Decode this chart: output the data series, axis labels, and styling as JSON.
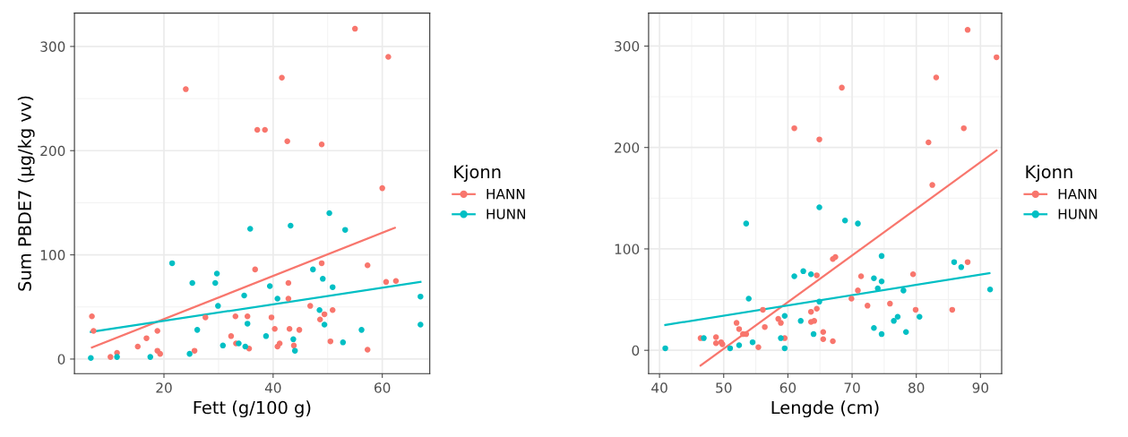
{
  "chart_data": [
    {
      "type": "scatter",
      "xlabel": "Fett (g/100 g)",
      "ylabel": "Sum PBDE7 (µg/kg vv)",
      "legend_title": "Kjonn",
      "legend": "right",
      "grid": true,
      "xlim": [
        3.6,
        68.7
      ],
      "ylim": [
        -14,
        332
      ],
      "xticks": [
        20,
        40,
        60
      ],
      "yticks": [
        0,
        100,
        200,
        300
      ],
      "series": [
        {
          "name": "HANN",
          "marker": "circle",
          "color": "#f8766d",
          "x": [
            6.8,
            7.1,
            10.2,
            11.4,
            15.2,
            16.8,
            18.8,
            18.8,
            19.3,
            24.0,
            25.6,
            27.6,
            32.3,
            33.1,
            33.2,
            35.3,
            35.6,
            36.7,
            37.1,
            38.5,
            39.7,
            40.3,
            40.8,
            41.2,
            41.6,
            42.6,
            42.8,
            42.8,
            43.0,
            43.8,
            44.8,
            46.8,
            48.9,
            48.9,
            48.6,
            49.4,
            50.9,
            50.5,
            55.0,
            57.3,
            57.3,
            60.0,
            60.7,
            61.1,
            62.5
          ],
          "values": [
            41,
            27,
            2,
            6,
            12,
            20,
            27,
            8,
            5,
            259,
            8,
            40,
            22,
            41,
            15,
            41,
            10,
            86,
            220,
            220,
            40,
            29,
            12,
            15,
            270,
            209,
            73,
            58,
            29,
            13,
            28,
            51,
            206,
            92,
            38,
            43,
            47,
            17,
            317,
            90,
            9,
            164,
            74,
            290,
            75
          ]
        },
        {
          "name": "HUNN",
          "marker": "circle",
          "color": "#00bfc4",
          "x": [
            6.6,
            11.4,
            17.5,
            21.5,
            24.7,
            25.2,
            26.1,
            29.4,
            29.7,
            29.9,
            30.8,
            33.7,
            34.7,
            34.9,
            35.3,
            35.8,
            38.7,
            39.4,
            40.8,
            43.2,
            43.7,
            44.0,
            47.3,
            48.5,
            49.1,
            49.4,
            50.3,
            50.9,
            52.8,
            53.2,
            56.2,
            67.0,
            67.0
          ],
          "values": [
            1,
            2,
            2,
            92,
            5,
            73,
            28,
            73,
            82,
            51,
            13,
            15,
            61,
            12,
            34,
            125,
            22,
            70,
            58,
            128,
            19,
            8,
            86,
            47,
            77,
            33,
            140,
            69,
            16,
            124,
            28,
            60,
            33
          ]
        },
        {
          "type": "line",
          "color": "#f8766d",
          "x": [
            6.8,
            62.3
          ],
          "values": [
            11,
            126
          ]
        },
        {
          "type": "line",
          "color": "#00bfc4",
          "x": [
            6.6,
            67.0
          ],
          "values": [
            26,
            74
          ]
        }
      ]
    },
    {
      "type": "scatter",
      "xlabel": "Lengde (cm)",
      "legend_title": "Kjonn",
      "legend": "right",
      "grid": true,
      "xlim": [
        38.3,
        93.3
      ],
      "ylim": [
        -23,
        332.5
      ],
      "xticks": [
        40,
        50,
        60,
        70,
        80,
        90
      ],
      "yticks": [
        0,
        100,
        200,
        300
      ],
      "series": [
        {
          "name": "HANN",
          "marker": "circle",
          "color": "#f8766d",
          "x": [
            46.4,
            48.8,
            48.8,
            49.6,
            49.8,
            52.0,
            52.4,
            53.0,
            53.5,
            55.4,
            56.1,
            56.4,
            58.5,
            58.9,
            59.5,
            61.0,
            63.6,
            63.6,
            64.1,
            64.5,
            64.5,
            64.9,
            65.5,
            65.5,
            67.0,
            67.4,
            67.0,
            68.4,
            69.9,
            70.9,
            71.4,
            72.4,
            75.9,
            79.5,
            79.9,
            81.9,
            82.5,
            83.1,
            85.6,
            87.4,
            88.0,
            88.0,
            92.5
          ],
          "values": [
            12,
            13,
            7,
            8,
            6,
            27,
            21,
            16,
            16,
            3,
            40,
            23,
            31,
            27,
            12,
            219,
            38,
            28,
            29,
            41,
            74,
            208,
            18,
            11,
            90,
            92,
            9,
            259,
            51,
            59,
            73,
            44,
            46,
            75,
            40,
            205,
            163,
            269,
            40,
            219,
            316,
            87,
            289
          ]
        },
        {
          "name": "HUNN",
          "marker": "circle",
          "color": "#00bfc4",
          "x": [
            40.9,
            46.9,
            51.0,
            52.4,
            53.5,
            53.9,
            54.5,
            58.9,
            59.5,
            59.5,
            61.0,
            62.0,
            62.4,
            63.6,
            64.0,
            64.9,
            64.9,
            68.9,
            70.9,
            73.4,
            73.4,
            74.0,
            74.6,
            74.6,
            74.6,
            76.5,
            77.1,
            78.0,
            78.4,
            80.5,
            85.9,
            87.0,
            91.5
          ],
          "values": [
            2,
            12,
            2,
            5,
            125,
            51,
            8,
            12,
            34,
            2,
            73,
            29,
            78,
            75,
            16,
            141,
            48,
            128,
            125,
            71,
            22,
            61,
            93,
            68,
            16,
            29,
            33,
            59,
            18,
            33,
            87,
            82,
            60
          ]
        },
        {
          "type": "line",
          "color": "#f8766d",
          "x": [
            46.4,
            92.5
          ],
          "values": [
            -15,
            197
          ]
        },
        {
          "type": "line",
          "color": "#00bfc4",
          "x": [
            40.9,
            91.4
          ],
          "values": [
            25,
            76
          ]
        }
      ]
    }
  ]
}
